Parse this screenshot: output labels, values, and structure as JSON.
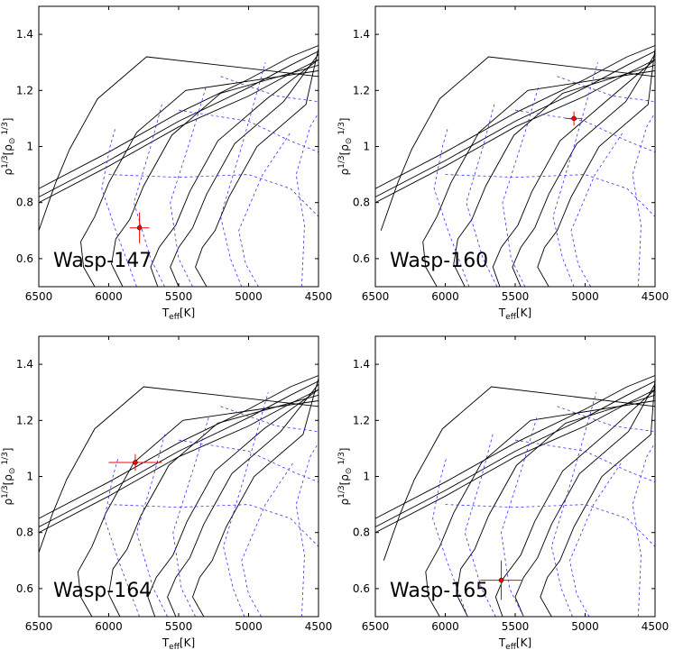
{
  "chart_data": [
    {
      "type": "line",
      "title": "Wasp-147",
      "xlabel": "T_eff[K]",
      "ylabel": "ρ^1/3[ρ⊙^1/3]",
      "xlim": [
        6500,
        4500
      ],
      "ylim": [
        1.5,
        0.5
      ],
      "xticks": [
        6500,
        6000,
        5500,
        5000,
        4500
      ],
      "yticks": [
        0.6,
        0.8,
        1,
        1.2,
        1.4
      ],
      "target": {
        "teff": 5780,
        "teff_err": 70,
        "rho": 0.71,
        "rho_err": 0.055,
        "color": "#ff0000"
      },
      "solid_color": "#000000",
      "dashed_color": "#3333ff",
      "label_position": "bottom-left"
    },
    {
      "type": "line",
      "title": "Wasp-160",
      "xlabel": "T_eff[K]",
      "ylabel": "ρ^1/3[ρ⊙^1/3]",
      "xlim": [
        6500,
        4500
      ],
      "ylim": [
        1.5,
        0.5
      ],
      "xticks": [
        6500,
        6000,
        5500,
        5000,
        4500
      ],
      "yticks": [
        0.6,
        0.8,
        1,
        1.2,
        1.4
      ],
      "target": {
        "teff": 5080,
        "teff_err": 60,
        "rho": 1.1,
        "rho_err": 0.025,
        "color": "#ff0000"
      },
      "solid_color": "#000000",
      "dashed_color": "#3333ff",
      "label_position": "bottom-left"
    },
    {
      "type": "line",
      "title": "Wasp-164",
      "xlabel": "T_eff[K]",
      "ylabel": "ρ^1/3[ρ⊙^1/3]",
      "xlim": [
        6500,
        4500
      ],
      "ylim": [
        1.5,
        0.5
      ],
      "xticks": [
        6500,
        6000,
        5500,
        5000,
        4500
      ],
      "yticks": [
        0.6,
        0.8,
        1,
        1.2,
        1.4
      ],
      "target": {
        "teff": 5810,
        "teff_err": 190,
        "rho": 1.05,
        "rho_err": 0.03,
        "color": "#ff0000"
      },
      "solid_color": "#000000",
      "dashed_color": "#3333ff",
      "label_position": "bottom-left"
    },
    {
      "type": "line",
      "title": "Wasp-165",
      "xlabel": "T_eff[K]",
      "ylabel": "ρ^1/3[ρ⊙^1/3]",
      "xlim": [
        6500,
        4500
      ],
      "ylim": [
        1.5,
        0.5
      ],
      "xticks": [
        6500,
        6000,
        5500,
        5000,
        4500
      ],
      "yticks": [
        0.6,
        0.8,
        1,
        1.2,
        1.4
      ],
      "target": {
        "teff": 5600,
        "teff_err": 150,
        "rho": 0.63,
        "rho_err": 0.07,
        "color": "#ff0000"
      },
      "solid_color": "#000000",
      "dashed_color": "#3333ff",
      "label_position": "bottom-left"
    }
  ]
}
